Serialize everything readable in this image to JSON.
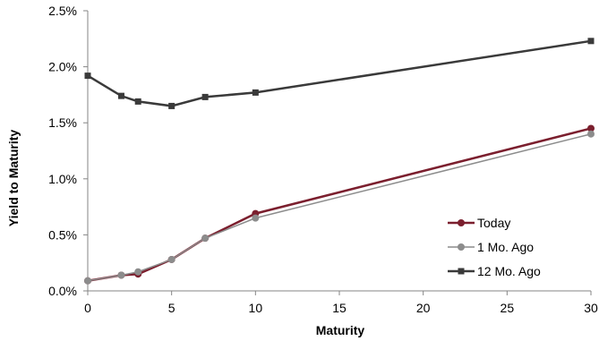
{
  "chart_data": {
    "type": "line",
    "title": "",
    "xlabel": "Maturity",
    "ylabel": "Yield to Maturity",
    "xlim": [
      0,
      30
    ],
    "ylim": [
      0,
      2.5
    ],
    "x_ticks": [
      0,
      5,
      10,
      15,
      20,
      25,
      30
    ],
    "x_tick_labels": [
      "0",
      "5",
      "10",
      "15",
      "20",
      "25",
      "30"
    ],
    "y_ticks": [
      0,
      0.5,
      1.0,
      1.5,
      2.0,
      2.5
    ],
    "y_tick_labels": [
      "0.0%",
      "0.5%",
      "1.0%",
      "1.5%",
      "2.0%",
      "2.5%"
    ],
    "grid": false,
    "legend_position": "bottom-right",
    "series": [
      {
        "name": "Today",
        "color": "#7b1f2e",
        "marker": "circle",
        "x": [
          0,
          2,
          3,
          5,
          7,
          10,
          30
        ],
        "values": [
          0.09,
          0.14,
          0.15,
          0.28,
          0.47,
          0.69,
          1.45
        ]
      },
      {
        "name": "1 Mo. Ago",
        "color": "#8c8c8c",
        "marker": "circle",
        "x": [
          0,
          2,
          3,
          5,
          7,
          10,
          30
        ],
        "values": [
          0.09,
          0.14,
          0.17,
          0.28,
          0.47,
          0.65,
          1.4
        ]
      },
      {
        "name": "12 Mo. Ago",
        "color": "#3a3a3a",
        "marker": "square",
        "x": [
          0,
          2,
          3,
          5,
          7,
          10,
          30
        ],
        "values": [
          1.92,
          1.74,
          1.69,
          1.65,
          1.73,
          1.77,
          2.23
        ]
      }
    ]
  }
}
